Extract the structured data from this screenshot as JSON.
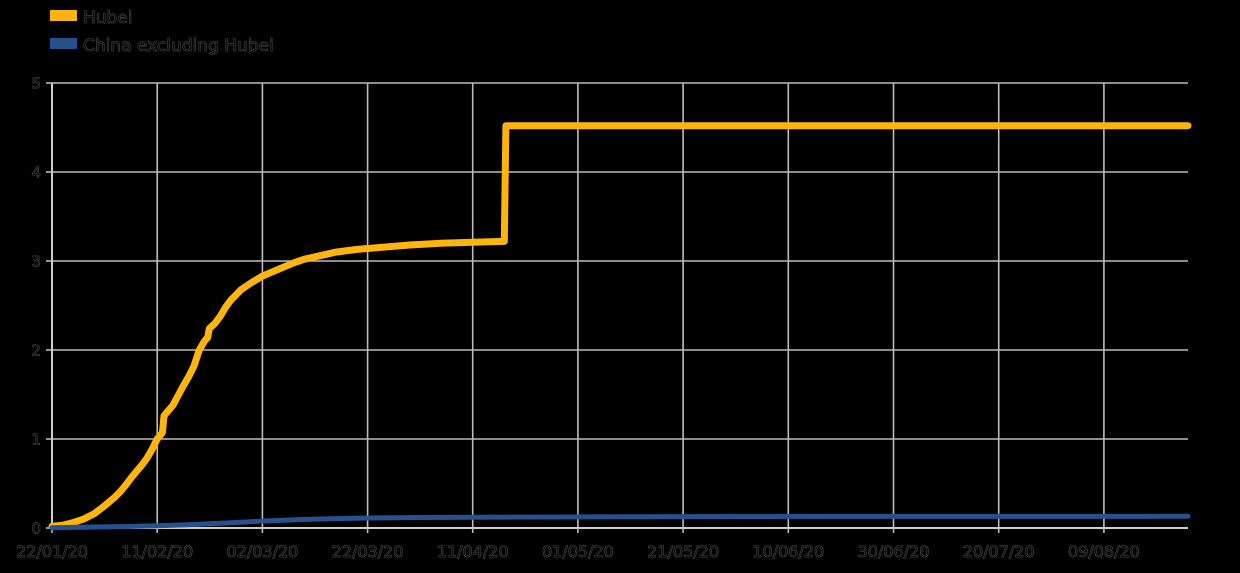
{
  "chart_data": {
    "type": "line",
    "title": "",
    "xlabel": "",
    "ylabel": "",
    "grid": true,
    "legend_position": "top-left",
    "x_tick_labels": [
      "22/01/20",
      "11/02/20",
      "02/03/20",
      "22/03/20",
      "11/04/20",
      "01/05/20",
      "21/05/20",
      "10/06/20",
      "30/06/20",
      "20/07/20",
      "09/08/20"
    ],
    "x_tick_days": [
      0,
      20,
      40,
      60,
      80,
      100,
      120,
      140,
      160,
      180,
      200
    ],
    "x_range_days": [
      0,
      216
    ],
    "y_ticks": [
      0,
      1,
      2,
      3,
      4,
      5
    ],
    "ylim": [
      0,
      5
    ],
    "series": [
      {
        "name": "Hubei",
        "color": "#fdb50d",
        "points": [
          [
            0,
            0.02
          ],
          [
            2,
            0.03
          ],
          [
            4,
            0.06
          ],
          [
            6,
            0.1
          ],
          [
            8,
            0.16
          ],
          [
            10,
            0.25
          ],
          [
            12,
            0.35
          ],
          [
            13,
            0.41
          ],
          [
            14,
            0.48
          ],
          [
            15,
            0.56
          ],
          [
            16,
            0.63
          ],
          [
            17,
            0.7
          ],
          [
            18,
            0.78
          ],
          [
            19,
            0.88
          ],
          [
            20,
            1.0
          ],
          [
            21,
            1.07
          ],
          [
            21.3,
            1.26
          ],
          [
            22,
            1.31
          ],
          [
            23,
            1.38
          ],
          [
            24,
            1.49
          ],
          [
            25,
            1.6
          ],
          [
            26,
            1.7
          ],
          [
            27,
            1.82
          ],
          [
            28,
            2.0
          ],
          [
            29,
            2.1
          ],
          [
            29.6,
            2.14
          ],
          [
            29.9,
            2.24
          ],
          [
            31,
            2.3
          ],
          [
            32,
            2.38
          ],
          [
            33,
            2.48
          ],
          [
            34,
            2.56
          ],
          [
            35,
            2.62
          ],
          [
            36,
            2.68
          ],
          [
            38,
            2.76
          ],
          [
            40,
            2.83
          ],
          [
            42,
            2.88
          ],
          [
            44,
            2.93
          ],
          [
            46,
            2.98
          ],
          [
            48,
            3.02
          ],
          [
            51,
            3.06
          ],
          [
            54,
            3.1
          ],
          [
            58,
            3.13
          ],
          [
            62,
            3.15
          ],
          [
            68,
            3.18
          ],
          [
            74,
            3.2
          ],
          [
            80,
            3.21
          ],
          [
            86,
            3.22
          ],
          [
            86.3,
            4.52
          ],
          [
            95,
            4.52
          ],
          [
            216,
            4.52
          ]
        ]
      },
      {
        "name": "China excluding Hubei",
        "color": "#25518f",
        "points": [
          [
            0,
            0.003
          ],
          [
            5,
            0.008
          ],
          [
            10,
            0.012
          ],
          [
            15,
            0.018
          ],
          [
            20,
            0.025
          ],
          [
            25,
            0.035
          ],
          [
            30,
            0.048
          ],
          [
            35,
            0.062
          ],
          [
            40,
            0.078
          ],
          [
            45,
            0.09
          ],
          [
            50,
            0.1
          ],
          [
            55,
            0.107
          ],
          [
            60,
            0.112
          ],
          [
            70,
            0.118
          ],
          [
            80,
            0.121
          ],
          [
            95,
            0.124
          ],
          [
            110,
            0.127
          ],
          [
            130,
            0.129
          ],
          [
            216,
            0.132
          ]
        ]
      }
    ]
  },
  "colors": {
    "background": "#000000",
    "gridline": "#bcbcbc",
    "axis_spine": "#cfcfcf",
    "tick_text_fill": "#0d0d0d",
    "tick_text_outline": "#7b7b7b"
  }
}
